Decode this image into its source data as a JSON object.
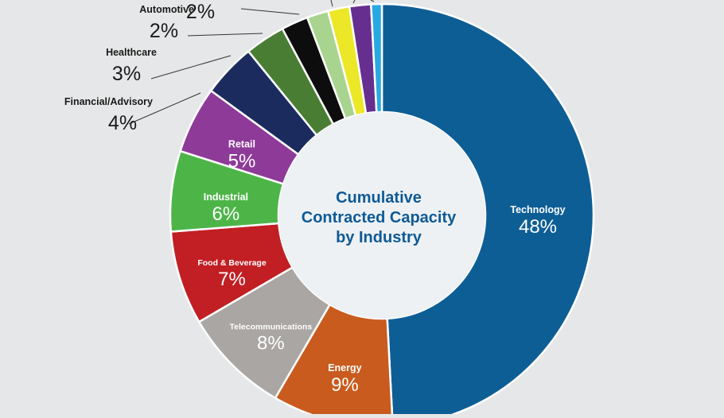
{
  "chart_data": {
    "type": "pie",
    "donut": true,
    "title": "Cumulative Contracted Capacity by Industry",
    "title_lines": [
      "Cumulative",
      "Contracted Capacity",
      "by Industry"
    ],
    "background": "#e6e7e8",
    "hole_color": "#eef1f3",
    "title_color": "#0e5a96",
    "slices": [
      {
        "label": "Technology",
        "value": 48,
        "display": "48%",
        "color": "#0e5e96"
      },
      {
        "label": "Energy",
        "value": 9,
        "display": "9%",
        "color": "#c95b1e"
      },
      {
        "label": "Telecommunications",
        "value": 8,
        "display": "8%",
        "color": "#a9a6a3"
      },
      {
        "label": "Food & Beverage",
        "value": 7,
        "display": "7%",
        "color": "#c11f24"
      },
      {
        "label": "Industrial",
        "value": 6,
        "display": "6%",
        "color": "#4db548"
      },
      {
        "label": "Retail",
        "value": 5,
        "display": "5%",
        "color": "#8e3a99"
      },
      {
        "label": "Financial/Advisory",
        "value": 4,
        "display": "4%",
        "color": "#1c2b5e"
      },
      {
        "label": "Healthcare",
        "value": 3,
        "display": "3%",
        "color": "#4a7d34"
      },
      {
        "label": "Automotive",
        "value": 2,
        "display": "2%",
        "color": "#0d0d0d"
      },
      {
        "label": "",
        "value": 1.6,
        "display": "2%",
        "color": "#a8d490"
      },
      {
        "label": "",
        "value": 1.6,
        "display": "",
        "color": "#ece727"
      },
      {
        "label": "",
        "value": 1.6,
        "display": "",
        "color": "#662f8f"
      },
      {
        "label": "",
        "value": 0.8,
        "display": "",
        "color": "#29a9e1"
      }
    ]
  }
}
